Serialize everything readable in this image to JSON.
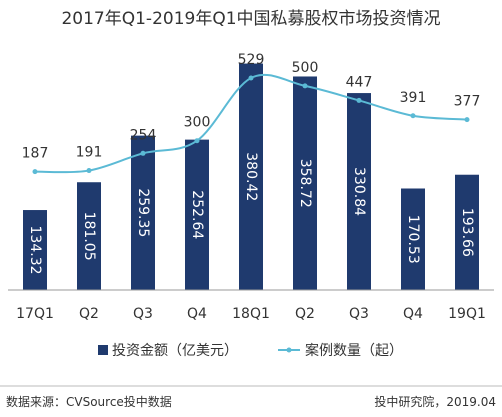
{
  "chart_data": {
    "type": "bar",
    "title": "2017年Q1-2019年Q1中国私募股权市场投资情况",
    "categories": [
      "17Q1",
      "Q2",
      "Q3",
      "Q4",
      "18Q1",
      "Q2",
      "Q3",
      "Q4",
      "19Q1"
    ],
    "series": [
      {
        "name": "投资金额（亿美元）",
        "kind": "bar",
        "color": "#1f3a6e",
        "values": [
          134.32,
          181.05,
          259.35,
          252.64,
          380.42,
          358.72,
          330.84,
          170.53,
          193.66
        ],
        "labels": [
          "134.32",
          "181.05",
          "259.35",
          "252.64",
          "380.42",
          "358.72",
          "330.84",
          "170.53",
          "193.66"
        ]
      },
      {
        "name": "案例数量（起）",
        "kind": "line",
        "color": "#5bbad5",
        "values": [
          187,
          191,
          254,
          300,
          529,
          500,
          447,
          391,
          377
        ],
        "labels": [
          "187",
          "191",
          "254",
          "300",
          "529",
          "500",
          "447",
          "391",
          "377"
        ]
      }
    ],
    "legend_position": "bottom",
    "grid": false,
    "footer_left": "数据来源：CVSource投中数据",
    "footer_right": "投中研究院，2019.04"
  }
}
